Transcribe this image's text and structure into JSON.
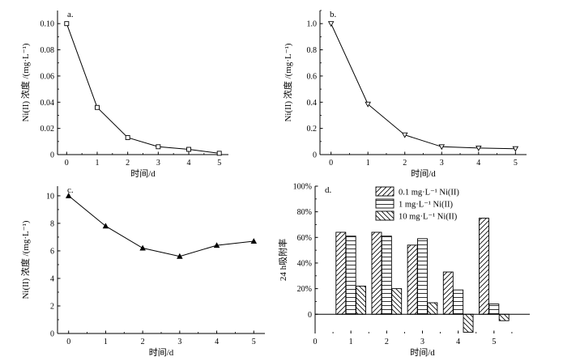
{
  "chart_data": [
    {
      "id": "a",
      "panel_label": "a.",
      "type": "line",
      "marker": "square",
      "x": [
        0,
        1,
        2,
        3,
        4,
        5
      ],
      "y": [
        0.1,
        0.036,
        0.013,
        0.006,
        0.004,
        0.001
      ],
      "xlim": [
        -0.3,
        5.3
      ],
      "ylim": [
        0,
        0.11
      ],
      "xticks": [
        "0",
        "1",
        "2",
        "3",
        "4",
        "5"
      ],
      "yticks": [
        "0",
        "0.02",
        "0.04",
        "0.06",
        "0.08",
        "0.10"
      ],
      "xlabel": "时间/d",
      "ylabel": "Ni(II) 浓度 /(mg·L⁻¹)"
    },
    {
      "id": "b",
      "panel_label": "b.",
      "type": "line",
      "marker": "triangle-down",
      "x": [
        0,
        1,
        2,
        3,
        4,
        5
      ],
      "y": [
        1.0,
        0.385,
        0.15,
        0.06,
        0.05,
        0.045
      ],
      "xlim": [
        -0.3,
        5.3
      ],
      "ylim": [
        0,
        1.1
      ],
      "xticks": [
        "0",
        "1",
        "2",
        "3",
        "4",
        "5"
      ],
      "yticks": [
        "0",
        "0.2",
        "0.4",
        "0.6",
        "0.8",
        "1.0"
      ],
      "xlabel": "时间/d",
      "ylabel": "Ni(II) 浓度 /(mg·L⁻¹)"
    },
    {
      "id": "c",
      "panel_label": "c.",
      "type": "line",
      "marker": "filled-triangle-up",
      "x": [
        0,
        1,
        2,
        3,
        4,
        5
      ],
      "y": [
        10.0,
        7.8,
        6.2,
        5.6,
        6.4,
        6.7
      ],
      "xlim": [
        -0.3,
        5.3
      ],
      "ylim": [
        0,
        10.7
      ],
      "xticks": [
        "0",
        "1",
        "2",
        "3",
        "4",
        "5"
      ],
      "yticks": [
        "0",
        "2",
        "4",
        "6",
        "8",
        "10"
      ],
      "xlabel": "时间/d",
      "ylabel": "Ni(II) 浓度 /(mg·L⁻¹)"
    },
    {
      "id": "d",
      "panel_label": "d.",
      "type": "bar",
      "categories": [
        "1",
        "2",
        "3",
        "4",
        "5"
      ],
      "series": [
        {
          "name": "0.1 mg·L⁻¹ Ni(II)",
          "pattern": "diagonal",
          "values": [
            64,
            64,
            54,
            33,
            75
          ]
        },
        {
          "name": "1 mg·L⁻¹ Ni(II)",
          "pattern": "horizontal",
          "values": [
            61,
            61,
            59,
            19,
            8
          ]
        },
        {
          "name": "10 mg·L⁻¹ Ni(II)",
          "pattern": "back-diagonal",
          "values": [
            22,
            20,
            9,
            -14,
            -5
          ]
        }
      ],
      "xlim": [
        0,
        6
      ],
      "ylim": [
        -15,
        100
      ],
      "xticks": [
        "0",
        "1",
        "2",
        "3",
        "4",
        "5"
      ],
      "yticks": [
        "0",
        "20%",
        "40%",
        "60%",
        "80%",
        "100%"
      ],
      "xlabel": "时间/d",
      "ylabel": "24 h吸附率",
      "legend_position": "top-right"
    }
  ]
}
